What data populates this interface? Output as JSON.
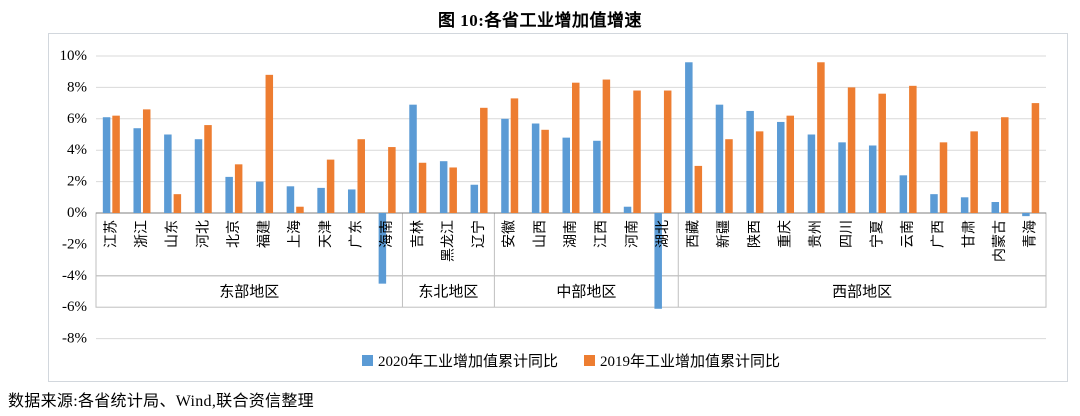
{
  "title": "图 10:各省工业增加值增速",
  "source_note": "数据来源:各省统计局、Wind,联合资信整理",
  "colors": {
    "series_2020": "#5B9BD5",
    "series_2019": "#ED7D31",
    "gridline": "#D9D9D9",
    "zero_axis": "#7F7F7F",
    "band_border": "#BFBFBF",
    "chart_border": "#D2D7DD",
    "text": "#000000"
  },
  "chart_data": {
    "type": "bar",
    "title": "图 10:各省工业增加值增速",
    "categories": [
      "江苏",
      "浙江",
      "山东",
      "河北",
      "北京",
      "福建",
      "上海",
      "天津",
      "广东",
      "海南",
      "吉林",
      "黑龙江",
      "辽宁",
      "安徽",
      "山西",
      "湖南",
      "江西",
      "河南",
      "湖北",
      "西藏",
      "新疆",
      "陕西",
      "重庆",
      "贵州",
      "四川",
      "宁夏",
      "云南",
      "广西",
      "甘肃",
      "内蒙古",
      "青海"
    ],
    "region_groups": [
      {
        "label": "东部地区",
        "count": 10
      },
      {
        "label": "东北地区",
        "count": 3
      },
      {
        "label": "中部地区",
        "count": 6
      },
      {
        "label": "西部地区",
        "count": 12
      }
    ],
    "series": [
      {
        "name": "2020年工业增加值累计同比",
        "color": "#5B9BD5",
        "values": [
          6.1,
          5.4,
          5.0,
          4.7,
          2.3,
          2.0,
          1.7,
          1.6,
          1.5,
          -4.5,
          6.9,
          3.3,
          1.8,
          6.0,
          5.7,
          4.8,
          4.6,
          0.4,
          -6.1,
          9.6,
          6.9,
          6.5,
          5.8,
          5.0,
          4.5,
          4.3,
          2.4,
          1.2,
          1.0,
          0.7,
          -0.2
        ]
      },
      {
        "name": "2019年工业增加值累计同比",
        "color": "#ED7D31",
        "values": [
          6.2,
          6.6,
          1.2,
          5.6,
          3.1,
          8.8,
          0.4,
          3.4,
          4.7,
          4.2,
          3.2,
          2.9,
          6.7,
          7.3,
          5.3,
          8.3,
          8.5,
          7.8,
          7.8,
          3.0,
          4.7,
          5.2,
          6.2,
          9.6,
          8.0,
          7.6,
          8.1,
          4.5,
          5.2,
          6.1,
          7.0
        ]
      }
    ],
    "ylim": [
      -8,
      10
    ],
    "ytick_step": 2,
    "ytick_labels": [
      "10%",
      "8%",
      "6%",
      "4%",
      "2%",
      "0%",
      "-2%",
      "-4%",
      "-6%",
      "-8%"
    ],
    "grid": true,
    "legend_position": "bottom"
  }
}
